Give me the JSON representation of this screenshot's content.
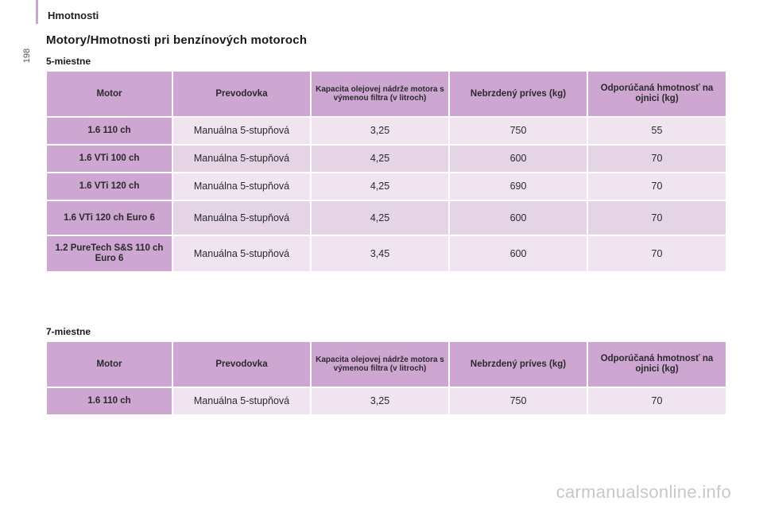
{
  "page": {
    "number": "198",
    "section": "Hmotnosti",
    "title": "Motory/Hmotnosti pri benzínových motoroch"
  },
  "columns": [
    "Motor",
    "Prevodovka",
    "Kapacita olejovej nádrže motora s výmenou filtra (v litroch)",
    "Nebrzdený príves (kg)",
    "Odporúčaná hmotnosť na ojnici (kg)"
  ],
  "tables": [
    {
      "label": "5-miestne",
      "rows": [
        [
          "1.6 110 ch",
          "Manuálna 5-stupňová",
          "3,25",
          "750",
          "55"
        ],
        [
          "1.6 VTi 100 ch",
          "Manuálna 5-stupňová",
          "4,25",
          "600",
          "70"
        ],
        [
          "1.6 VTi 120 ch",
          "Manuálna 5-stupňová",
          "4,25",
          "690",
          "70"
        ],
        [
          "1.6 VTi 120 ch Euro 6",
          "Manuálna 5-stupňová",
          "4,25",
          "600",
          "70"
        ],
        [
          "1.2 PureTech S&S 110 ch Euro 6",
          "Manuálna 5-stupňová",
          "3,45",
          "600",
          "70"
        ]
      ]
    },
    {
      "label": "7-miestne",
      "rows": [
        [
          "1.6 110 ch",
          "Manuálna 5-stupňová",
          "3,25",
          "750",
          "70"
        ]
      ]
    }
  ],
  "watermark": "carmanualsonline.info"
}
